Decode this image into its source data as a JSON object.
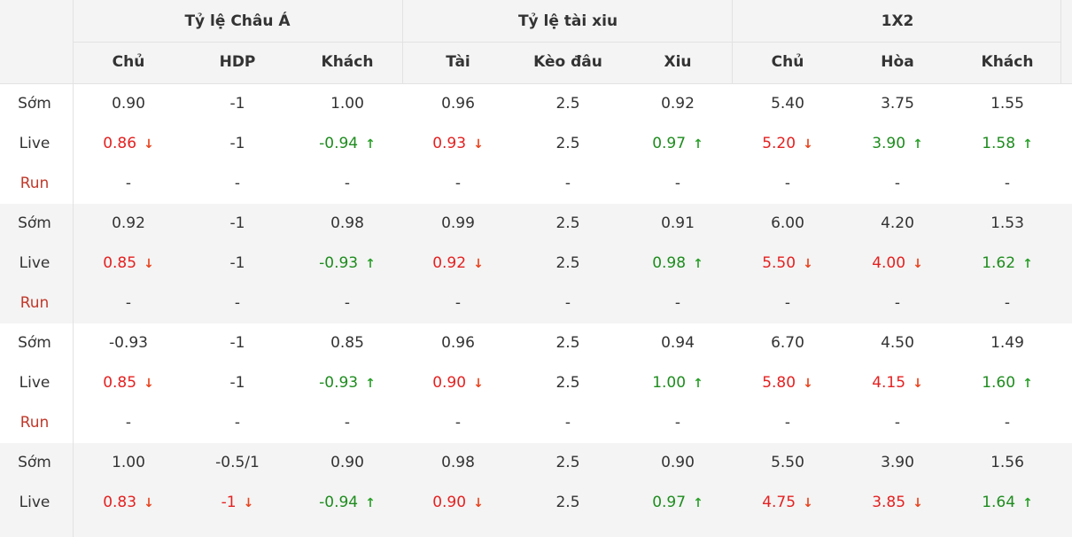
{
  "groups": [
    {
      "title": "Tỷ lệ Châu Á",
      "columns": [
        "Chủ",
        "HDP",
        "Khách"
      ]
    },
    {
      "title": "Tỷ lệ tài xiu",
      "columns": [
        "Tài",
        "Kèo đâu",
        "Xiu"
      ]
    },
    {
      "title": "1X2",
      "columns": [
        "Chủ",
        "Hòa",
        "Khách"
      ]
    }
  ],
  "row_labels": {
    "early": "Sớm",
    "live": "Live",
    "run": "Run"
  },
  "arrow_icons": {
    "down": "↓",
    "up": "↑"
  },
  "colors": {
    "down": "#e42121",
    "up": "#1e8c1e",
    "run_label": "#c0392b",
    "header_bg": "#f4f4f4"
  },
  "blocks": [
    {
      "early": [
        {
          "v": "0.90"
        },
        {
          "v": "-1"
        },
        {
          "v": "1.00"
        },
        {
          "v": "0.96"
        },
        {
          "v": "2.5"
        },
        {
          "v": "0.92"
        },
        {
          "v": "5.40"
        },
        {
          "v": "3.75"
        },
        {
          "v": "1.55"
        }
      ],
      "live": [
        {
          "v": "0.86",
          "t": "down"
        },
        {
          "v": "-1"
        },
        {
          "v": "-0.94",
          "t": "up"
        },
        {
          "v": "0.93",
          "t": "down"
        },
        {
          "v": "2.5"
        },
        {
          "v": "0.97",
          "t": "up"
        },
        {
          "v": "5.20",
          "t": "down"
        },
        {
          "v": "3.90",
          "t": "up"
        },
        {
          "v": "1.58",
          "t": "up"
        }
      ],
      "run": [
        {
          "v": "-"
        },
        {
          "v": "-"
        },
        {
          "v": "-"
        },
        {
          "v": "-"
        },
        {
          "v": "-"
        },
        {
          "v": "-"
        },
        {
          "v": "-"
        },
        {
          "v": "-"
        },
        {
          "v": "-"
        }
      ]
    },
    {
      "early": [
        {
          "v": "0.92"
        },
        {
          "v": "-1"
        },
        {
          "v": "0.98"
        },
        {
          "v": "0.99"
        },
        {
          "v": "2.5"
        },
        {
          "v": "0.91"
        },
        {
          "v": "6.00"
        },
        {
          "v": "4.20"
        },
        {
          "v": "1.53"
        }
      ],
      "live": [
        {
          "v": "0.85",
          "t": "down"
        },
        {
          "v": "-1"
        },
        {
          "v": "-0.93",
          "t": "up"
        },
        {
          "v": "0.92",
          "t": "down"
        },
        {
          "v": "2.5"
        },
        {
          "v": "0.98",
          "t": "up"
        },
        {
          "v": "5.50",
          "t": "down"
        },
        {
          "v": "4.00",
          "t": "down"
        },
        {
          "v": "1.62",
          "t": "up"
        }
      ],
      "run": [
        {
          "v": "-"
        },
        {
          "v": "-"
        },
        {
          "v": "-"
        },
        {
          "v": "-"
        },
        {
          "v": "-"
        },
        {
          "v": "-"
        },
        {
          "v": "-"
        },
        {
          "v": "-"
        },
        {
          "v": "-"
        }
      ]
    },
    {
      "early": [
        {
          "v": "-0.93"
        },
        {
          "v": "-1"
        },
        {
          "v": "0.85"
        },
        {
          "v": "0.96"
        },
        {
          "v": "2.5"
        },
        {
          "v": "0.94"
        },
        {
          "v": "6.70"
        },
        {
          "v": "4.50"
        },
        {
          "v": "1.49"
        }
      ],
      "live": [
        {
          "v": "0.85",
          "t": "down"
        },
        {
          "v": "-1"
        },
        {
          "v": "-0.93",
          "t": "up"
        },
        {
          "v": "0.90",
          "t": "down"
        },
        {
          "v": "2.5"
        },
        {
          "v": "1.00",
          "t": "up"
        },
        {
          "v": "5.80",
          "t": "down"
        },
        {
          "v": "4.15",
          "t": "down"
        },
        {
          "v": "1.60",
          "t": "up"
        }
      ],
      "run": [
        {
          "v": "-"
        },
        {
          "v": "-"
        },
        {
          "v": "-"
        },
        {
          "v": "-"
        },
        {
          "v": "-"
        },
        {
          "v": "-"
        },
        {
          "v": "-"
        },
        {
          "v": "-"
        },
        {
          "v": "-"
        }
      ]
    },
    {
      "early": [
        {
          "v": "1.00"
        },
        {
          "v": "-0.5/1"
        },
        {
          "v": "0.90"
        },
        {
          "v": "0.98"
        },
        {
          "v": "2.5"
        },
        {
          "v": "0.90"
        },
        {
          "v": "5.50"
        },
        {
          "v": "3.90"
        },
        {
          "v": "1.56"
        }
      ],
      "live": [
        {
          "v": "0.83",
          "t": "down"
        },
        {
          "v": "-1",
          "t": "down"
        },
        {
          "v": "-0.94",
          "t": "up"
        },
        {
          "v": "0.90",
          "t": "down"
        },
        {
          "v": "2.5"
        },
        {
          "v": "0.97",
          "t": "up"
        },
        {
          "v": "4.75",
          "t": "down"
        },
        {
          "v": "3.85",
          "t": "down"
        },
        {
          "v": "1.64",
          "t": "up"
        }
      ]
    }
  ]
}
